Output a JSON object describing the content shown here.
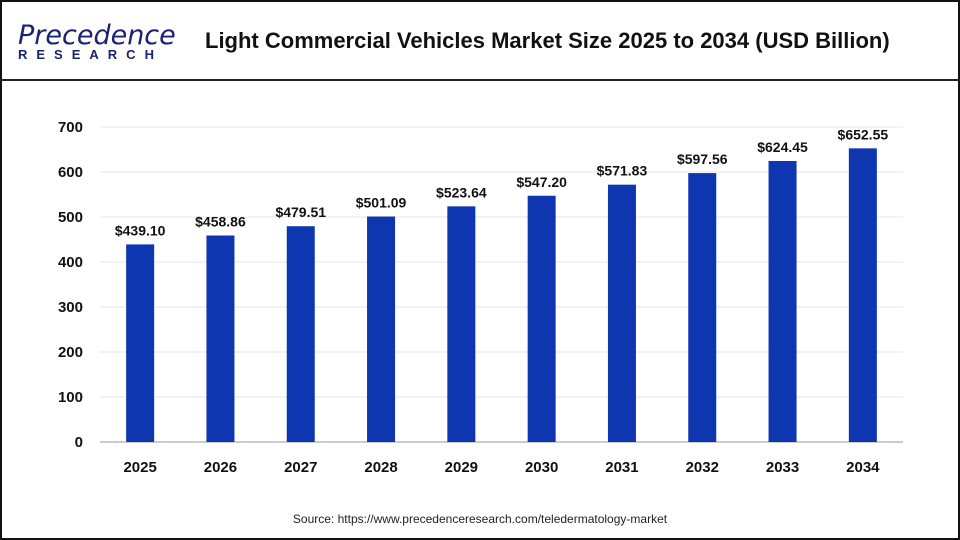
{
  "logo": {
    "line1": "Precedence",
    "line2": "RESEARCH"
  },
  "title": "Light Commercial Vehicles Market Size 2025 to 2034 (USD Billion)",
  "source": "Source: https://www.precedenceresearch.com/teledermatology-market",
  "chart_data": {
    "type": "bar",
    "title": "Light Commercial Vehicles Market Size 2025 to 2034 (USD Billion)",
    "categories": [
      "2025",
      "2026",
      "2027",
      "2028",
      "2029",
      "2030",
      "2031",
      "2032",
      "2033",
      "2034"
    ],
    "values": [
      439.1,
      458.86,
      479.51,
      501.09,
      523.64,
      547.2,
      571.83,
      597.56,
      624.45,
      652.55
    ],
    "data_labels": [
      "$439.10",
      "$458.86",
      "$479.51",
      "$501.09",
      "$523.64",
      "$547.20",
      "$571.83",
      "$597.56",
      "$624.45",
      "$652.55"
    ],
    "ylim": [
      0,
      700
    ],
    "yticks": [
      "0",
      "100",
      "200",
      "300",
      "400",
      "500",
      "600",
      "700"
    ],
    "grid": true,
    "bar_color": "#0d36b0"
  }
}
